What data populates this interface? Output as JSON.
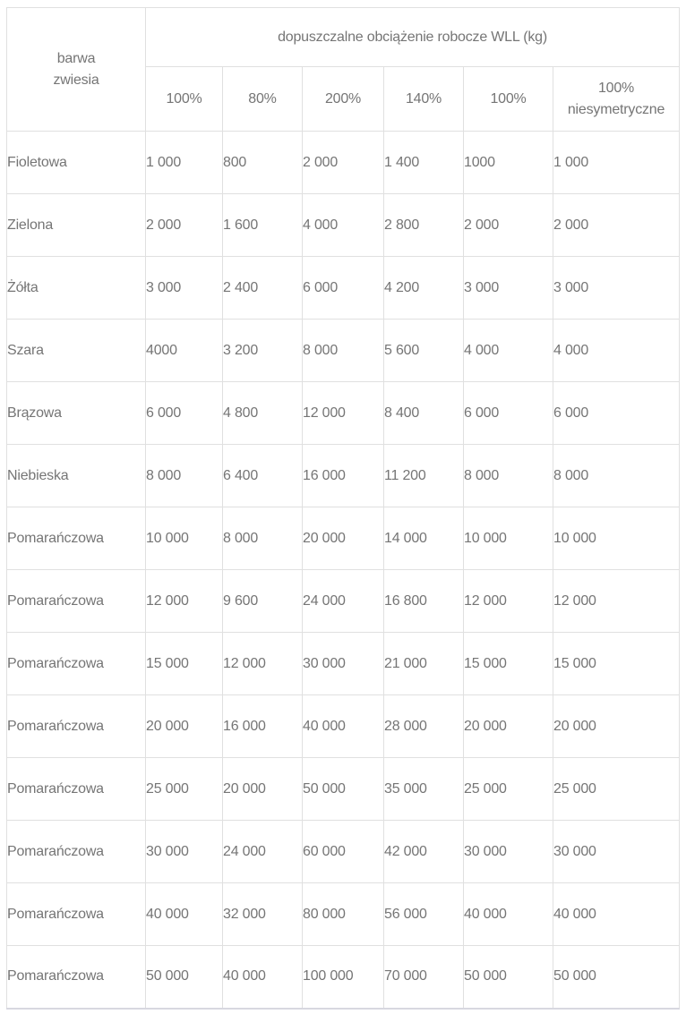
{
  "colors": {
    "text": "#757575",
    "border": "#e0e0e0",
    "bottom_border": "#d8d8e0",
    "background": "#ffffff"
  },
  "table": {
    "corner_header": "barwa\nzwiesia",
    "group_header": "dopuszczalne obciążenie robocze WLL (kg)",
    "sub_headers": [
      "100%",
      "80%",
      "200%",
      "140%",
      "100%",
      "100%\nniesymetryczne"
    ],
    "rows": [
      {
        "color": "Fioletowa",
        "values": [
          "1 000",
          "800",
          "2 000",
          "1 400",
          "1000",
          "1 000"
        ]
      },
      {
        "color": "Zielona",
        "values": [
          "2 000",
          "1 600",
          "4 000",
          "2 800",
          "2 000",
          "2 000"
        ]
      },
      {
        "color": "Żółta",
        "values": [
          "3 000",
          "2 400",
          "6 000",
          "4 200",
          "3 000",
          "3 000"
        ]
      },
      {
        "color": "Szara",
        "values": [
          "4000",
          "3 200",
          "8 000",
          "5 600",
          "4 000",
          "4 000"
        ]
      },
      {
        "color": "Brązowa",
        "values": [
          "6 000",
          "4 800",
          "12 000",
          "8 400",
          "6 000",
          "6 000"
        ]
      },
      {
        "color": "Niebieska",
        "values": [
          "8 000",
          "6 400",
          "16 000",
          "11 200",
          "8 000",
          "8 000"
        ]
      },
      {
        "color": "Pomarańczowa",
        "values": [
          "10 000",
          "8 000",
          "20 000",
          "14 000",
          "10 000",
          "10 000"
        ]
      },
      {
        "color": "Pomarańczowa",
        "values": [
          "12 000",
          "9 600",
          "24 000",
          "16 800",
          "12 000",
          "12 000"
        ]
      },
      {
        "color": "Pomarańczowa",
        "values": [
          "15 000",
          "12 000",
          "30 000",
          "21 000",
          "15 000",
          "15 000"
        ]
      },
      {
        "color": "Pomarańczowa",
        "values": [
          "20 000",
          "16 000",
          "40 000",
          "28 000",
          "20 000",
          "20 000"
        ]
      },
      {
        "color": "Pomarańczowa",
        "values": [
          "25 000",
          "20 000",
          "50 000",
          "35 000",
          "25 000",
          "25 000"
        ]
      },
      {
        "color": "Pomarańczowa",
        "values": [
          "30 000",
          "24 000",
          "60 000",
          "42 000",
          "30 000",
          "30 000"
        ]
      },
      {
        "color": "Pomarańczowa",
        "values": [
          "40 000",
          "32 000",
          "80 000",
          "56 000",
          "40 000",
          "40 000"
        ]
      },
      {
        "color": "Pomarańczowa",
        "values": [
          "50 000",
          "40 000",
          "100 000",
          "70 000",
          "50 000",
          "50 000"
        ]
      }
    ]
  }
}
